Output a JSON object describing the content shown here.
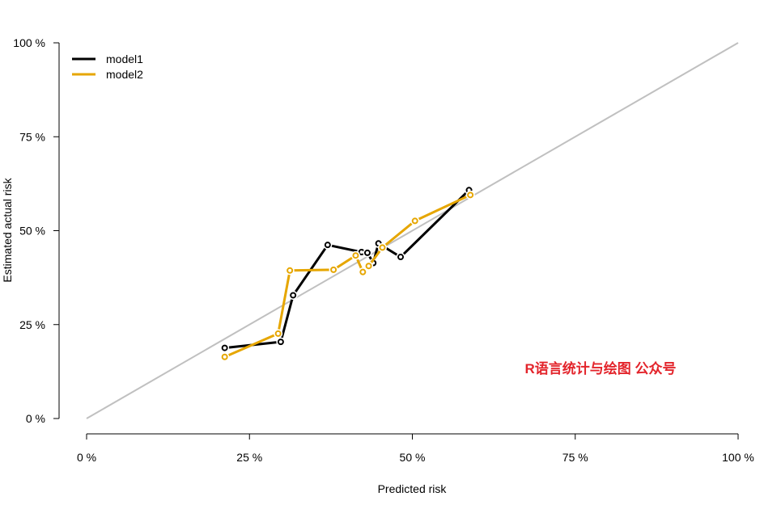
{
  "chart_data": {
    "type": "line",
    "xlabel": "Predicted risk",
    "ylabel": "Estimated actual risk",
    "xlim": [
      0,
      100
    ],
    "ylim": [
      0,
      100
    ],
    "x_ticks": [
      0,
      25,
      50,
      75,
      100
    ],
    "y_ticks": [
      0,
      25,
      50,
      75,
      100
    ],
    "x_tick_labels": [
      "0 %",
      "25 %",
      "50 %",
      "75 %",
      "100 %"
    ],
    "y_tick_labels": [
      "0 %",
      "25 %",
      "50 %",
      "75 %",
      "100 %"
    ],
    "grid": false,
    "legend_position": "top-left",
    "reference_line": {
      "x": [
        0,
        100
      ],
      "y": [
        0,
        100
      ],
      "color": "#c0c0c0"
    },
    "series": [
      {
        "name": "model1",
        "color": "#000000",
        "x": [
          21.2,
          29.8,
          31.7,
          37.0,
          42.2,
          43.1,
          44.0,
          44.8,
          48.2,
          58.7
        ],
        "y": [
          18.8,
          20.4,
          32.8,
          46.2,
          44.3,
          44.1,
          41.4,
          46.6,
          43.0,
          60.8
        ]
      },
      {
        "name": "model2",
        "color": "#e6a600",
        "x": [
          21.2,
          29.4,
          31.2,
          37.9,
          41.3,
          42.4,
          43.3,
          45.4,
          50.4,
          58.9
        ],
        "y": [
          16.4,
          22.6,
          39.4,
          39.6,
          43.4,
          39.0,
          40.6,
          45.5,
          52.6,
          59.5
        ]
      }
    ]
  },
  "watermark": "R语言统计与绘图 公众号"
}
